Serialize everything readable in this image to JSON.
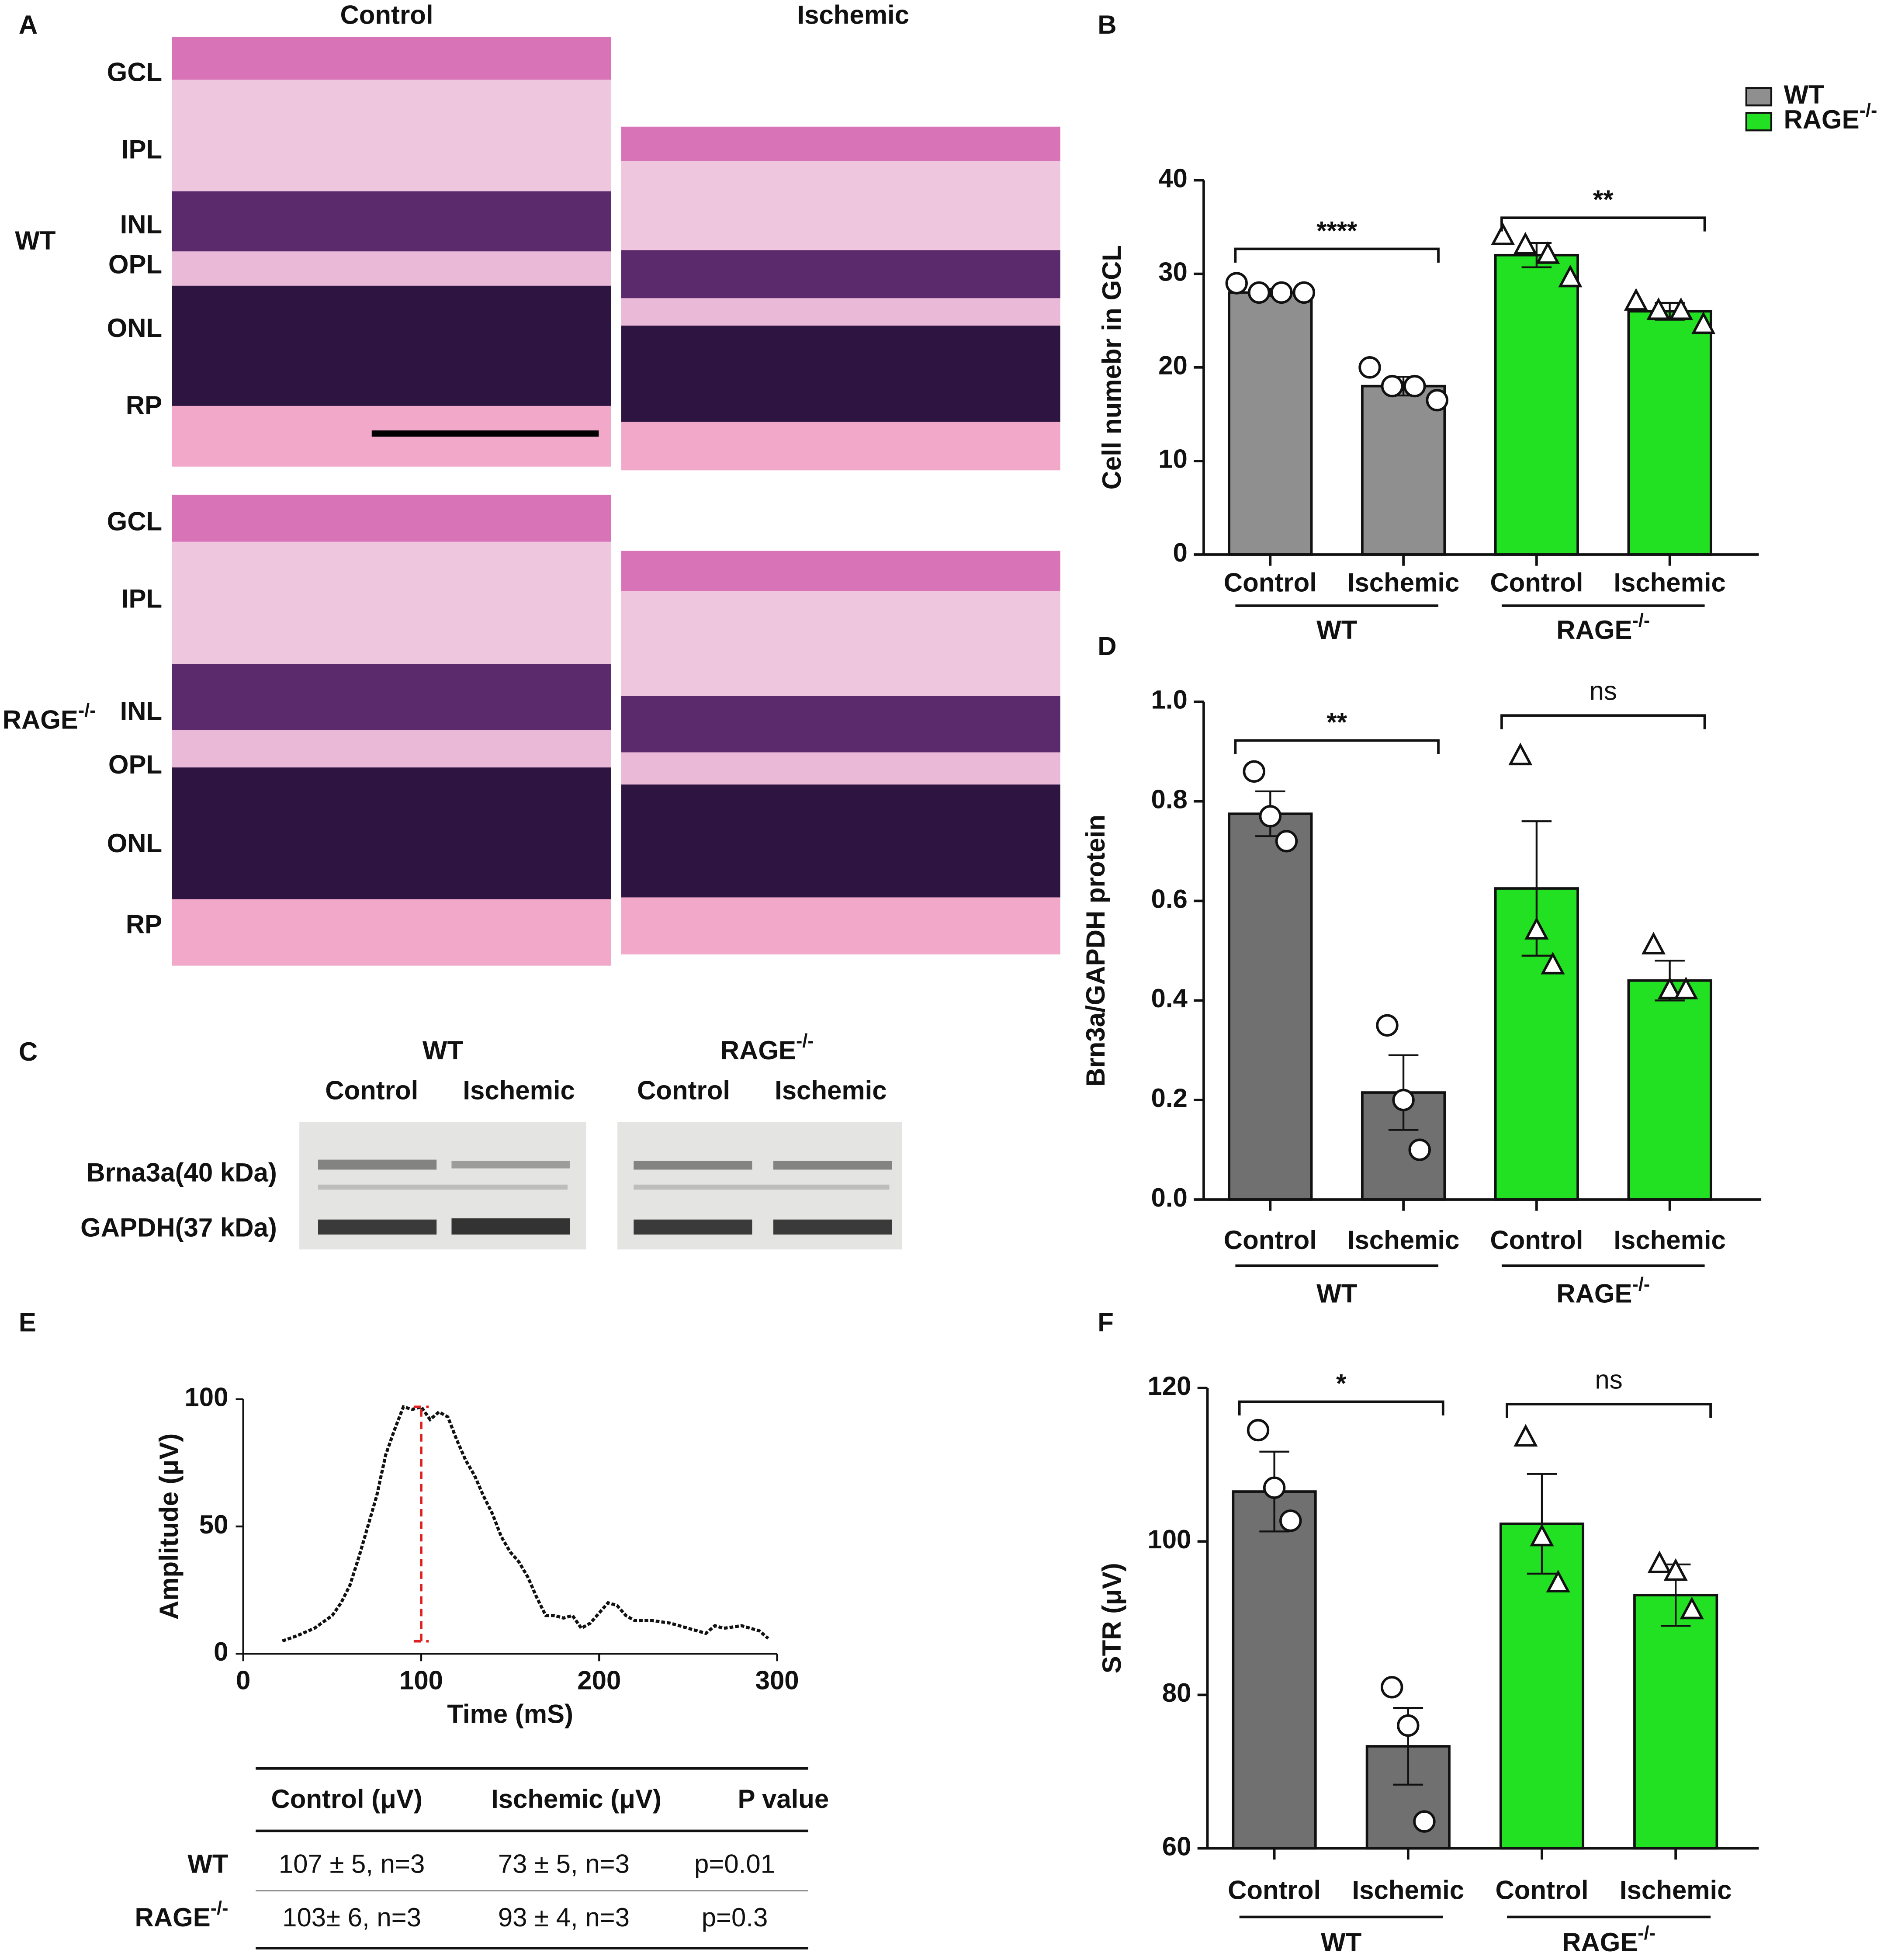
{
  "panel_labels": [
    "A",
    "B",
    "C",
    "D",
    "E",
    "F"
  ],
  "histology": {
    "columns": [
      "Control",
      "Ischemic"
    ],
    "rows": [
      {
        "label": "WT",
        "layers": [
          "GCL",
          "IPL",
          "INL",
          "OPL",
          "ONL",
          "RP"
        ]
      },
      {
        "label": "RAGE-/-",
        "layers": [
          "GCL",
          "IPL",
          "INL",
          "OPL",
          "ONL",
          "RP"
        ]
      }
    ]
  },
  "blot": {
    "groups": [
      {
        "name": "WT",
        "lanes": [
          "Control",
          "Ischemic"
        ]
      },
      {
        "name": "RAGE-/-",
        "lanes": [
          "Control",
          "Ischemic"
        ]
      }
    ],
    "bands": [
      "Brna3a(40 kDa)",
      "GAPDH(37 kDa)"
    ]
  },
  "table": {
    "header": [
      "Control (μV)",
      "Ischemic (μV)",
      "P value"
    ],
    "rows": [
      {
        "label": "WT",
        "cells": [
          "107 ± 5, n=3",
          "73 ± 5, n=3",
          "p=0.01"
        ]
      },
      {
        "label": "RAGE-/-",
        "cells": [
          "103± 6, n=3",
          "93 ± 4, n=3",
          "p=0.3"
        ]
      }
    ]
  },
  "chart_data": [
    {
      "type": "bar",
      "ylabel": "Cell numebr in GCL",
      "categories": [
        "Control",
        "Ischemic",
        "Control",
        "Ischemic"
      ],
      "groups": [
        "WT",
        "RAGE-/-"
      ],
      "values": [
        28,
        18,
        32,
        26
      ],
      "errors": [
        0.4,
        1,
        1.3,
        0.9
      ],
      "points": [
        [
          29,
          28,
          28,
          28
        ],
        [
          20,
          18,
          18,
          16.5
        ],
        [
          34,
          33,
          32,
          29.5
        ],
        [
          27,
          26,
          26,
          24.5
        ]
      ],
      "point_markers": [
        "circle",
        "circle",
        "triangle",
        "triangle"
      ],
      "bar_colors": [
        "#8f8f8f",
        "#8f8f8f",
        "#22e022",
        "#22e022"
      ],
      "significance": [
        "****",
        "**"
      ],
      "ylim": [
        0,
        40
      ],
      "yticks": [
        0,
        10,
        20,
        30,
        40
      ],
      "legend": {
        "position": "top right",
        "entries": [
          {
            "name": "WT",
            "color": "#8f8f8f"
          },
          {
            "name": "RAGE-/-",
            "color": "#22e022"
          }
        ]
      }
    },
    {
      "type": "bar",
      "ylabel": "Brn3a/GAPDH protein",
      "categories": [
        "Control",
        "Ischemic",
        "Control",
        "Ischemic"
      ],
      "groups": [
        "WT",
        "RAGE-/-"
      ],
      "values": [
        0.775,
        0.215,
        0.625,
        0.44
      ],
      "errors": [
        0.045,
        0.075,
        0.135,
        0.04
      ],
      "points": [
        [
          0.86,
          0.77,
          0.72
        ],
        [
          0.35,
          0.2,
          0.1
        ],
        [
          0.89,
          0.54,
          0.47
        ],
        [
          0.51,
          0.42,
          0.42
        ]
      ],
      "point_markers": [
        "circle",
        "circle",
        "triangle",
        "triangle"
      ],
      "bar_colors": [
        "#707070",
        "#707070",
        "#22e022",
        "#22e022"
      ],
      "significance": [
        "**",
        "ns"
      ],
      "ylim": [
        0,
        1
      ],
      "yticks": [
        {
          "value": 0,
          "label": "0.0"
        },
        0.2,
        0.4,
        0.6,
        0.8,
        {
          "value": 1,
          "label": "1.0"
        }
      ]
    },
    {
      "type": "line",
      "xlabel": "Time (mS)",
      "ylabel": "Amplitude (μV)",
      "x": [
        22,
        30,
        40,
        50,
        55,
        60,
        65,
        70,
        75,
        80,
        85,
        90,
        95,
        100,
        105,
        110,
        115,
        120,
        125,
        130,
        135,
        140,
        145,
        150,
        155,
        160,
        165,
        170,
        175,
        180,
        185,
        190,
        195,
        200,
        205,
        210,
        215,
        220,
        230,
        240,
        250,
        260,
        265,
        270,
        280,
        290,
        295
      ],
      "values": [
        5,
        7,
        10,
        15,
        20,
        27,
        38,
        50,
        62,
        78,
        88,
        97,
        96,
        97,
        92,
        95,
        93,
        84,
        76,
        70,
        62,
        55,
        46,
        40,
        36,
        30,
        22,
        15,
        15,
        14,
        15,
        10,
        12,
        16,
        20,
        19,
        15,
        13,
        13,
        12,
        10,
        8,
        11,
        10,
        11,
        9,
        6
      ],
      "color": "#111111",
      "peak": {
        "x": 100,
        "y": 97,
        "color": "#e02020"
      },
      "xlim": [
        0,
        300
      ],
      "xticks": [
        0,
        100,
        200,
        300
      ],
      "ylim": [
        0,
        100
      ],
      "yticks": [
        0,
        50,
        100
      ]
    },
    {
      "type": "bar",
      "ylabel": "STR (μV)",
      "categories": [
        "Control",
        "Ischemic",
        "Control",
        "Ischemic"
      ],
      "groups": [
        "WT",
        "RAGE-/-"
      ],
      "values": [
        106.5,
        73.3,
        102.3,
        93
      ],
      "errors": [
        5.2,
        5,
        6.5,
        4
      ],
      "points": [
        [
          114.5,
          107,
          102.7
        ],
        [
          81,
          76,
          63.5
        ],
        [
          113.5,
          100.5,
          94.5
        ],
        [
          97,
          96,
          91
        ]
      ],
      "point_markers": [
        "circle",
        "circle",
        "triangle",
        "triangle"
      ],
      "bar_colors": [
        "#707070",
        "#707070",
        "#22e022",
        "#22e022"
      ],
      "significance": [
        "*",
        "ns"
      ],
      "ylim": [
        60,
        120
      ],
      "yticks": [
        60,
        80,
        100,
        120
      ]
    }
  ]
}
